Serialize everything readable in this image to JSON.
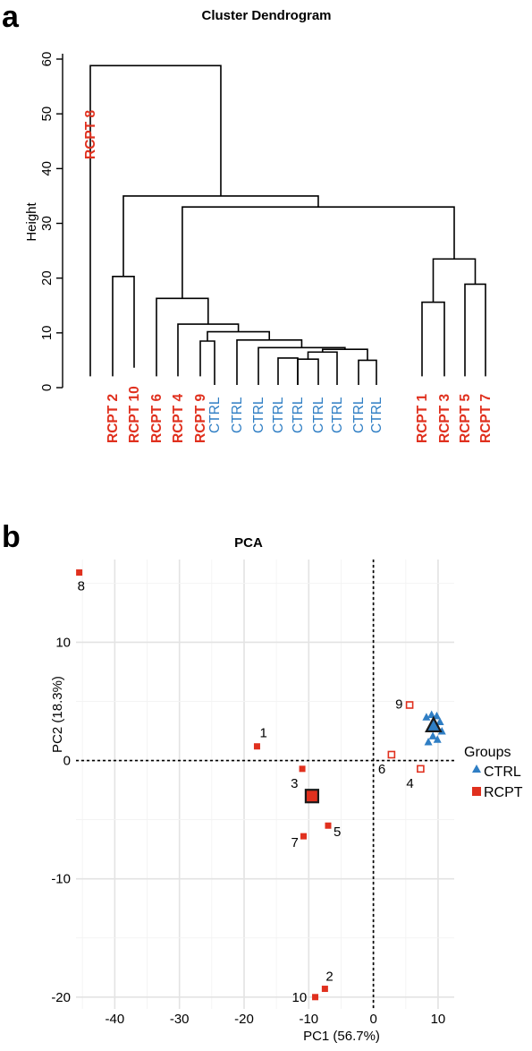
{
  "chart_data": [
    {
      "type": "dendrogram",
      "panel_label": "a",
      "title": "Cluster Dendrogram",
      "ylabel": "Height",
      "ylim": [
        0,
        60
      ],
      "yticks": [
        0,
        10,
        20,
        30,
        40,
        50,
        60
      ],
      "leaves": [
        {
          "label": "RCPT 8",
          "group": "RCPT"
        },
        {
          "label": "RCPT 2",
          "group": "RCPT"
        },
        {
          "label": "RCPT 10",
          "group": "RCPT"
        },
        {
          "label": "RCPT 6",
          "group": "RCPT"
        },
        {
          "label": "RCPT 4",
          "group": "RCPT"
        },
        {
          "label": "RCPT 9",
          "group": "RCPT"
        },
        {
          "label": "CTRL",
          "group": "CTRL"
        },
        {
          "label": "CTRL",
          "group": "CTRL"
        },
        {
          "label": "CTRL",
          "group": "CTRL"
        },
        {
          "label": "CTRL",
          "group": "CTRL"
        },
        {
          "label": "CTRL",
          "group": "CTRL"
        },
        {
          "label": "CTRL",
          "group": "CTRL"
        },
        {
          "label": "CTRL",
          "group": "CTRL"
        },
        {
          "label": "CTRL",
          "group": "CTRL"
        },
        {
          "label": "CTRL",
          "group": "CTRL"
        },
        {
          "label": "RCPT 1",
          "group": "RCPT"
        },
        {
          "label": "RCPT 3",
          "group": "RCPT"
        },
        {
          "label": "RCPT 5",
          "group": "RCPT"
        },
        {
          "label": "RCPT 7",
          "group": "RCPT"
        }
      ],
      "merges": [
        {
          "left": 13,
          "right": 14,
          "height": 5.0
        },
        {
          "left": 10,
          "right": 11,
          "height": 5.2
        },
        {
          "left": 9,
          "right": 10,
          "height": 5.4
        },
        {
          "left": "m2",
          "right": 12,
          "height": 6.5
        },
        {
          "left": "m4",
          "right": "m1",
          "height": 7.0
        },
        {
          "left": 8,
          "right": "m5",
          "height": 7.3
        },
        {
          "left": 7,
          "right": "m6",
          "height": 8.7
        },
        {
          "left": 5,
          "right": 6,
          "height": 8.5
        },
        {
          "left": "m7",
          "right": "m8",
          "height": 10.2
        },
        {
          "left": 4,
          "right": "m9",
          "height": 11.6
        },
        {
          "left": 3,
          "right": "m10",
          "height": 16.3
        },
        {
          "left": 15,
          "right": 16,
          "height": 15.6
        },
        {
          "left": 17,
          "right": 18,
          "height": 18.9
        },
        {
          "left": "m12",
          "right": "m13",
          "height": 23.5
        },
        {
          "left": "m11",
          "right": "m14",
          "height": 33.0
        },
        {
          "left": 1,
          "right": 2,
          "height": 20.3
        },
        {
          "left": "m16",
          "right": "m15",
          "height": 35.0
        },
        {
          "left": 0,
          "right": "m17",
          "height": 58.8
        }
      ],
      "colors": {
        "RCPT": "#e0301e",
        "CTRL": "#2f7ec4"
      }
    },
    {
      "type": "scatter",
      "panel_label": "b",
      "title": "PCA",
      "xlabel": "PC1 (56.7%)",
      "ylabel": "PC2 (18.3%)",
      "xlim": [
        -46,
        12.5
      ],
      "ylim": [
        -21,
        17
      ],
      "xticks": [
        -40,
        -30,
        -20,
        -10,
        0,
        10
      ],
      "yticks": [
        -20,
        -10,
        0,
        10
      ],
      "reference_lines": {
        "x": 0,
        "y": 0
      },
      "series": [
        {
          "name": "CTRL",
          "marker": "triangle",
          "color": "#2f7ec4",
          "points": [
            {
              "x": 8.2,
              "y": 3.7
            },
            {
              "x": 9.0,
              "y": 3.9
            },
            {
              "x": 9.8,
              "y": 3.8
            },
            {
              "x": 10.3,
              "y": 3.3
            },
            {
              "x": 10.6,
              "y": 2.5
            },
            {
              "x": 9.2,
              "y": 2.1
            },
            {
              "x": 8.5,
              "y": 1.6
            },
            {
              "x": 9.9,
              "y": 1.8
            },
            {
              "x": 8.8,
              "y": 2.7
            }
          ],
          "centroid": {
            "x": 9.3,
            "y": 3.0
          }
        },
        {
          "name": "RCPT",
          "marker": "square",
          "color": "#e0301e",
          "points": [
            {
              "label": "1",
              "x": -18.0,
              "y": 1.2,
              "filled": true
            },
            {
              "label": "2",
              "x": -7.5,
              "y": -19.3,
              "filled": true
            },
            {
              "label": "3",
              "x": -11.0,
              "y": -0.7,
              "filled": true
            },
            {
              "label": "4",
              "x": 7.3,
              "y": -0.7,
              "filled": false
            },
            {
              "label": "5",
              "x": -7.0,
              "y": -5.5,
              "filled": true
            },
            {
              "label": "6",
              "x": 2.8,
              "y": 0.5,
              "filled": false
            },
            {
              "label": "7",
              "x": -10.8,
              "y": -6.4,
              "filled": true
            },
            {
              "label": "8",
              "x": -45.5,
              "y": 15.9,
              "filled": true
            },
            {
              "label": "9",
              "x": 5.6,
              "y": 4.7,
              "filled": false
            },
            {
              "label": "10",
              "x": -9.0,
              "y": -20.0,
              "filled": true
            }
          ],
          "centroid": {
            "x": -9.5,
            "y": -3.0
          }
        }
      ],
      "legend": {
        "title": "Groups",
        "position": "right",
        "items": [
          "CTRL",
          "RCPT"
        ]
      }
    }
  ]
}
